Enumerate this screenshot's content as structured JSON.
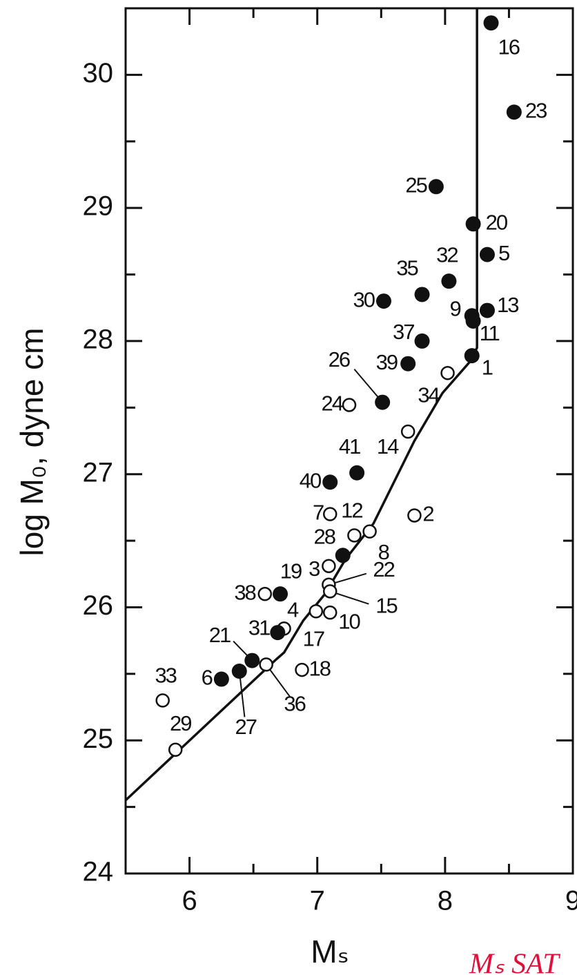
{
  "chart_data": {
    "type": "scatter",
    "xlabel": "Mₛ",
    "ylabel": "log M₀, dyne cm",
    "annotation": "Mₛ SAT",
    "xlim": [
      5.5,
      9
    ],
    "ylim": [
      24,
      30.5
    ],
    "xticks": [
      6,
      7,
      8,
      9
    ],
    "yticks": [
      24,
      25,
      26,
      27,
      28,
      29,
      30
    ],
    "xminor": [
      5.5,
      6.5,
      7.5,
      8.5
    ],
    "yminor": [
      24.5,
      25.5,
      26.5,
      27.5,
      28.5,
      29.5
    ],
    "points": [
      {
        "label": "16",
        "x": 8.36,
        "y": 30.39,
        "filled": true
      },
      {
        "label": "23",
        "x": 8.54,
        "y": 29.72,
        "filled": true
      },
      {
        "label": "25",
        "x": 7.93,
        "y": 29.16,
        "filled": true
      },
      {
        "label": "20",
        "x": 8.22,
        "y": 28.88,
        "filled": true
      },
      {
        "label": "5",
        "x": 8.33,
        "y": 28.65,
        "filled": true
      },
      {
        "label": "32",
        "x": 8.03,
        "y": 28.45,
        "filled": true
      },
      {
        "label": "35",
        "x": 7.82,
        "y": 28.35,
        "filled": true
      },
      {
        "label": "30",
        "x": 7.52,
        "y": 28.3,
        "filled": true
      },
      {
        "label": "9",
        "x": 8.21,
        "y": 28.19,
        "filled": true
      },
      {
        "label": "13",
        "x": 8.33,
        "y": 28.23,
        "filled": true
      },
      {
        "label": "11",
        "x": 8.22,
        "y": 28.15,
        "filled": true
      },
      {
        "label": "37",
        "x": 7.82,
        "y": 28.0,
        "filled": true
      },
      {
        "label": "1",
        "x": 8.21,
        "y": 27.89,
        "filled": true
      },
      {
        "label": "39",
        "x": 7.71,
        "y": 27.83,
        "filled": true
      },
      {
        "label": "26",
        "x": 7.51,
        "y": 27.54,
        "filled": true
      },
      {
        "label": "24",
        "x": 7.25,
        "y": 27.52,
        "filled": false
      },
      {
        "label": "34",
        "x": 8.02,
        "y": 27.76,
        "filled": false
      },
      {
        "label": "14",
        "x": 7.71,
        "y": 27.32,
        "filled": false
      },
      {
        "label": "41",
        "x": 7.31,
        "y": 27.01,
        "filled": true
      },
      {
        "label": "40",
        "x": 7.1,
        "y": 26.94,
        "filled": true
      },
      {
        "label": "2",
        "x": 7.76,
        "y": 26.69,
        "filled": false
      },
      {
        "label": "7",
        "x": 7.1,
        "y": 26.7,
        "filled": false
      },
      {
        "label": "12",
        "x": 7.29,
        "y": 26.54,
        "filled": false
      },
      {
        "label": "28",
        "x": 7.2,
        "y": 26.39,
        "filled": true
      },
      {
        "label": "8",
        "x": 7.41,
        "y": 26.57,
        "filled": false
      },
      {
        "label": "3",
        "x": 7.09,
        "y": 26.31,
        "filled": false
      },
      {
        "label": "19",
        "x": 6.71,
        "y": 26.1,
        "filled": true
      },
      {
        "label": "22",
        "x": 7.09,
        "y": 26.17,
        "filled": false
      },
      {
        "label": "15",
        "x": 7.1,
        "y": 26.12,
        "filled": false
      },
      {
        "label": "38",
        "x": 6.59,
        "y": 26.1,
        "filled": false
      },
      {
        "label": "4",
        "x": 6.74,
        "y": 25.84,
        "filled": false
      },
      {
        "label": "10",
        "x": 7.1,
        "y": 25.96,
        "filled": false
      },
      {
        "label": "17",
        "x": 6.99,
        "y": 25.97,
        "filled": false
      },
      {
        "label": "31",
        "x": 6.69,
        "y": 25.81,
        "filled": true
      },
      {
        "label": "21",
        "x": 6.49,
        "y": 25.6,
        "filled": true
      },
      {
        "label": "18",
        "x": 6.88,
        "y": 25.53,
        "filled": false
      },
      {
        "label": "36",
        "x": 6.6,
        "y": 25.57,
        "filled": false
      },
      {
        "label": "33",
        "x": 5.79,
        "y": 25.3,
        "filled": false
      },
      {
        "label": "6",
        "x": 6.25,
        "y": 25.46,
        "filled": true
      },
      {
        "label": "27",
        "x": 6.39,
        "y": 25.52,
        "filled": true
      },
      {
        "label": "29",
        "x": 5.89,
        "y": 24.93,
        "filled": false
      }
    ],
    "curve": {
      "x": [
        5.5,
        6.68,
        6.74,
        6.89,
        7.06,
        7.22,
        7.44,
        7.76,
        7.98,
        8.19,
        8.25,
        8.25
      ],
      "y": [
        24.55,
        25.61,
        25.66,
        25.9,
        26.1,
        26.36,
        26.63,
        27.25,
        27.61,
        27.84,
        27.95,
        30.5
      ]
    }
  }
}
